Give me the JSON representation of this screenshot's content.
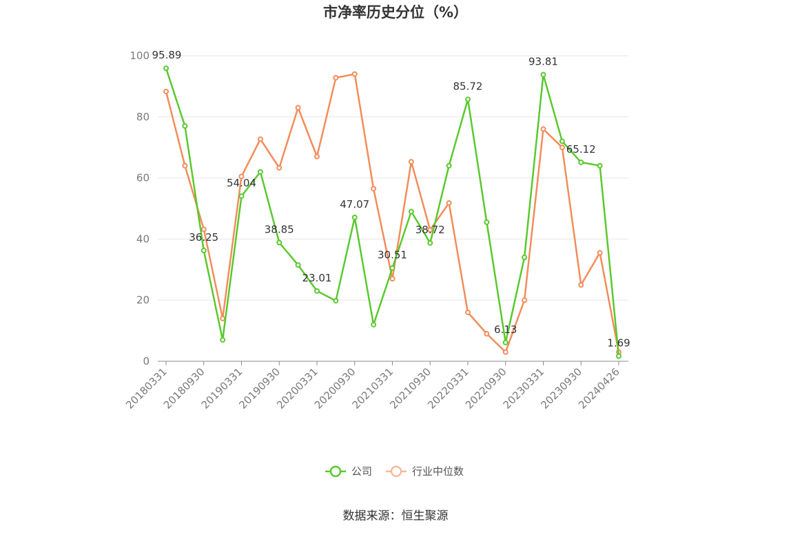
{
  "chart_data": {
    "type": "line",
    "title": "市净率历史分位（%）",
    "ylim": [
      0,
      100
    ],
    "y_ticks": [
      0,
      20,
      40,
      60,
      80,
      100
    ],
    "x_tick_labels": [
      "20180331",
      "20180930",
      "20190331",
      "20190930",
      "20200331",
      "20200930",
      "20210331",
      "20210930",
      "20220331",
      "20220930",
      "20230331",
      "20230930",
      "20240426"
    ],
    "grid": true,
    "legend_placement": "bottom-center",
    "series": [
      {
        "name": "公司",
        "color": "#5ac82e",
        "values": [
          95.89,
          77,
          36.25,
          7,
          54.04,
          62,
          38.85,
          31.5,
          23.01,
          19.8,
          47.07,
          12,
          30.51,
          49,
          38.72,
          64,
          85.72,
          45.5,
          6.13,
          34,
          93.81,
          72,
          65.12,
          64,
          1.69
        ],
        "labels": [
          "95.89",
          "",
          "36.25",
          "",
          "54.04",
          "",
          "38.85",
          "",
          "23.01",
          "",
          "47.07",
          "",
          "30.51",
          "",
          "38.72",
          "",
          "85.72",
          "",
          "6.13",
          "",
          "93.81",
          "",
          "65.12",
          "",
          "1.69"
        ]
      },
      {
        "name": "行业中位数",
        "color": "#f28c5a",
        "values": [
          88.3,
          64,
          43.2,
          14,
          60.5,
          72.7,
          63.3,
          83,
          67,
          92.8,
          94,
          56.5,
          27,
          65.3,
          43,
          51.8,
          16,
          9,
          3,
          20,
          76,
          70,
          25,
          35.5,
          3
        ]
      }
    ],
    "source": "数据来源：恒生聚源"
  }
}
